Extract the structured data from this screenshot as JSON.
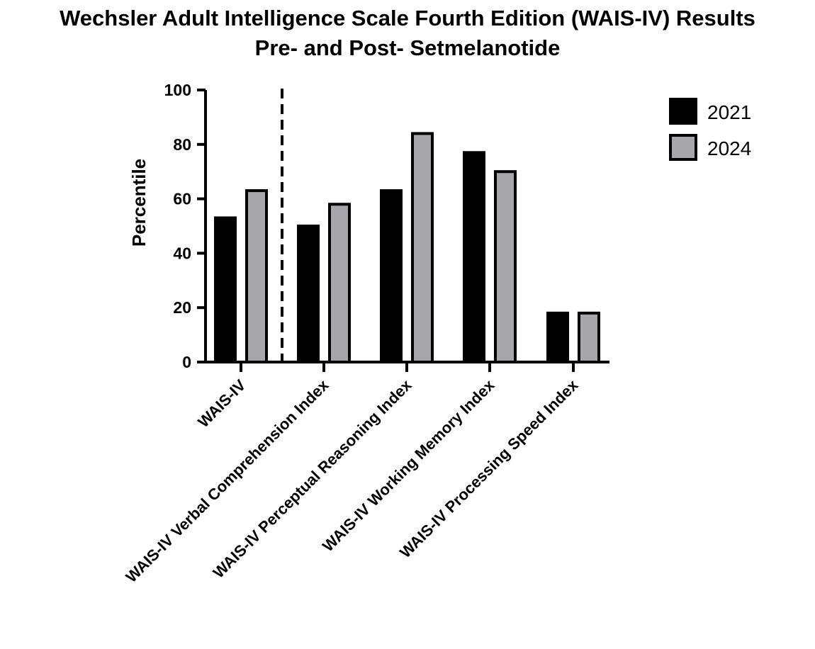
{
  "chart_data": {
    "type": "bar",
    "title": "Wechsler Adult Intelligence Scale Fourth Edition (WAIS-IV) Results",
    "subtitle": "Pre- and Post- Setmelanotide",
    "xlabel": "",
    "ylabel": "Percentile",
    "ylim": [
      0,
      100
    ],
    "yticks": [
      0,
      20,
      40,
      60,
      80,
      100
    ],
    "categories": [
      "WAIS-IV",
      "WAIS-IV Verbal Comprehension Index",
      "WAIS-IV Perceptual Reasoning Index",
      "WAIS-IV Working Memory Index",
      "WAIS-IV Processing Speed Index"
    ],
    "series": [
      {
        "name": "2021",
        "color": "#000000",
        "values": [
          53,
          50,
          63,
          77,
          18
        ]
      },
      {
        "name": "2024",
        "color": "#a6a6ab",
        "values": [
          63,
          58,
          84,
          70,
          18
        ]
      }
    ],
    "legend_position": "top-right",
    "divider": "dashed vertical line after first category",
    "grid": false
  }
}
